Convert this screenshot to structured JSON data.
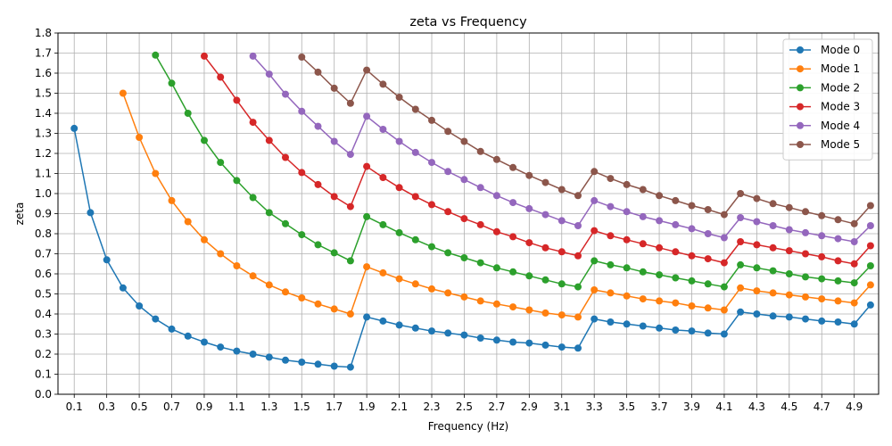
{
  "chart_data": {
    "type": "line",
    "title": "zeta vs Frequency",
    "xlabel": "Frequency (Hz)",
    "ylabel": "zeta",
    "xlim": [
      0.0,
      5.05
    ],
    "ylim": [
      0.0,
      1.8
    ],
    "xticks": [
      "0.1",
      "0.3",
      "0.5",
      "0.7",
      "0.9",
      "1.1",
      "1.3",
      "1.5",
      "1.7",
      "1.9",
      "2.1",
      "2.3",
      "2.5",
      "2.7",
      "2.9",
      "3.1",
      "3.3",
      "3.5",
      "3.7",
      "3.9",
      "4.1",
      "4.3",
      "4.5",
      "4.7",
      "4.9"
    ],
    "yticks": [
      "0.0",
      "0.1",
      "0.2",
      "0.3",
      "0.4",
      "0.5",
      "0.6",
      "0.7",
      "0.8",
      "0.9",
      "1.0",
      "1.1",
      "1.2",
      "1.3",
      "1.4",
      "1.5",
      "1.6",
      "1.7",
      "1.8"
    ],
    "grid": true,
    "legend_position": "top-right",
    "x_full": [
      0.1,
      0.2,
      0.3,
      0.4,
      0.5,
      0.6,
      0.7,
      0.8,
      0.9,
      1.0,
      1.1,
      1.2,
      1.3,
      1.4,
      1.5,
      1.6,
      1.7,
      1.8,
      1.9,
      2.0,
      2.1,
      2.2,
      2.3,
      2.4,
      2.5,
      2.6,
      2.7,
      2.8,
      2.9,
      3.0,
      3.1,
      3.2,
      3.3,
      3.4,
      3.5,
      3.6,
      3.7,
      3.8,
      3.9,
      4.0,
      4.1,
      4.2,
      4.3,
      4.4,
      4.5,
      4.6,
      4.7,
      4.8,
      4.9,
      5.0
    ],
    "series": [
      {
        "name": "Mode 0",
        "color": "#1f77b4",
        "x_start": 0.1,
        "values": [
          1.325,
          0.905,
          0.67,
          0.53,
          0.44,
          0.375,
          0.325,
          0.29,
          0.26,
          0.235,
          0.215,
          0.2,
          0.185,
          0.17,
          0.16,
          0.15,
          0.14,
          0.135,
          0.385,
          0.365,
          0.345,
          0.33,
          0.315,
          0.305,
          0.295,
          0.28,
          0.27,
          0.26,
          0.255,
          0.245,
          0.235,
          0.23,
          0.375,
          0.36,
          0.35,
          0.34,
          0.33,
          0.32,
          0.315,
          0.305,
          0.3,
          0.41,
          0.4,
          0.39,
          0.385,
          0.375,
          0.365,
          0.36,
          0.35,
          0.445
        ]
      },
      {
        "name": "Mode 1",
        "color": "#ff7f0e",
        "x_start": 0.4,
        "values": [
          1.5,
          1.28,
          1.1,
          0.965,
          0.86,
          0.77,
          0.7,
          0.64,
          0.59,
          0.545,
          0.51,
          0.48,
          0.45,
          0.425,
          0.4,
          0.635,
          0.605,
          0.575,
          0.55,
          0.525,
          0.505,
          0.485,
          0.465,
          0.45,
          0.435,
          0.42,
          0.405,
          0.395,
          0.385,
          0.52,
          0.505,
          0.49,
          0.475,
          0.465,
          0.455,
          0.44,
          0.43,
          0.42,
          0.53,
          0.515,
          0.505,
          0.495,
          0.485,
          0.475,
          0.465,
          0.455,
          0.545
        ]
      },
      {
        "name": "Mode 2",
        "color": "#2ca02c",
        "x_start": 0.6,
        "values": [
          1.69,
          1.55,
          1.4,
          1.265,
          1.155,
          1.065,
          0.98,
          0.905,
          0.85,
          0.795,
          0.745,
          0.705,
          0.665,
          0.885,
          0.845,
          0.805,
          0.77,
          0.735,
          0.705,
          0.68,
          0.655,
          0.63,
          0.61,
          0.59,
          0.57,
          0.55,
          0.535,
          0.665,
          0.645,
          0.63,
          0.61,
          0.595,
          0.58,
          0.565,
          0.55,
          0.535,
          0.645,
          0.63,
          0.615,
          0.6,
          0.585,
          0.575,
          0.565,
          0.555,
          0.64
        ]
      },
      {
        "name": "Mode 3",
        "color": "#d62728",
        "x_start": 0.9,
        "values": [
          1.685,
          1.58,
          1.465,
          1.355,
          1.265,
          1.18,
          1.105,
          1.045,
          0.985,
          0.935,
          1.135,
          1.08,
          1.03,
          0.985,
          0.945,
          0.91,
          0.875,
          0.845,
          0.81,
          0.785,
          0.755,
          0.73,
          0.71,
          0.69,
          0.815,
          0.79,
          0.77,
          0.75,
          0.73,
          0.71,
          0.69,
          0.675,
          0.655,
          0.76,
          0.745,
          0.73,
          0.715,
          0.7,
          0.685,
          0.665,
          0.65,
          0.74
        ]
      },
      {
        "name": "Mode 4",
        "color": "#9467bd",
        "x_start": 1.2,
        "values": [
          1.685,
          1.595,
          1.495,
          1.41,
          1.335,
          1.26,
          1.195,
          1.385,
          1.32,
          1.26,
          1.205,
          1.155,
          1.11,
          1.07,
          1.03,
          0.99,
          0.955,
          0.925,
          0.895,
          0.865,
          0.84,
          0.965,
          0.935,
          0.91,
          0.885,
          0.865,
          0.845,
          0.825,
          0.8,
          0.78,
          0.88,
          0.86,
          0.84,
          0.82,
          0.805,
          0.79,
          0.775,
          0.76,
          0.84
        ]
      },
      {
        "name": "Mode 5",
        "color": "#8c564b",
        "x_start": 1.5,
        "values": [
          1.68,
          1.605,
          1.525,
          1.45,
          1.615,
          1.545,
          1.48,
          1.42,
          1.365,
          1.31,
          1.26,
          1.21,
          1.17,
          1.13,
          1.09,
          1.055,
          1.02,
          0.99,
          1.11,
          1.075,
          1.045,
          1.02,
          0.99,
          0.965,
          0.94,
          0.92,
          0.895,
          1.0,
          0.975,
          0.95,
          0.93,
          0.91,
          0.89,
          0.87,
          0.85,
          0.94
        ]
      }
    ]
  }
}
